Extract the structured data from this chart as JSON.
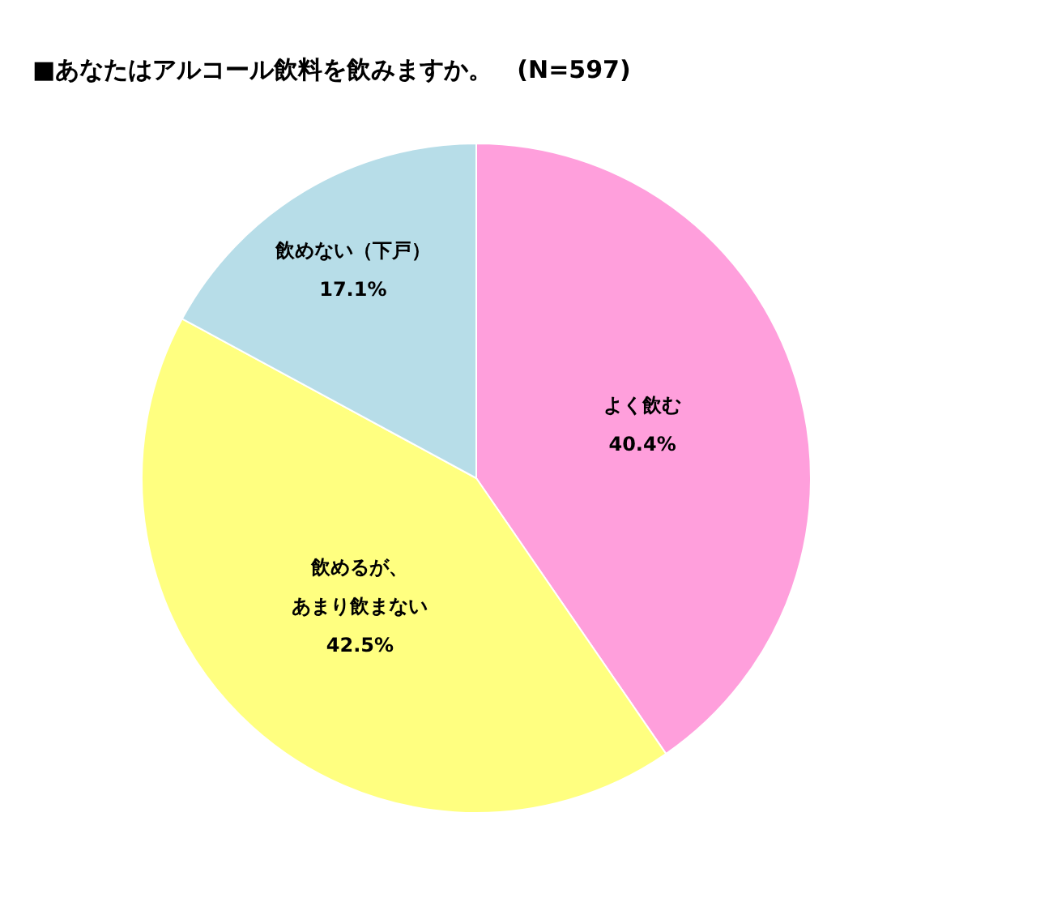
{
  "chart_data": {
    "type": "pie",
    "title": "■あなたはアルコール飲料を飲みますか。　(N=597)",
    "categories": [
      "よく飲む",
      "飲めるが、あまり飲まない",
      "飲めない（下戸）"
    ],
    "values": [
      40.4,
      42.5,
      17.1
    ],
    "value_labels": [
      "40.4%",
      "42.5%",
      "17.1%"
    ],
    "colors": [
      "#ff9fdc",
      "#ffff80",
      "#b7dde8"
    ],
    "legend": false
  }
}
